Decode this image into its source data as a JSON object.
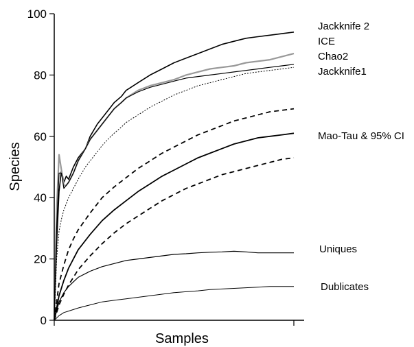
{
  "chart_data": {
    "type": "line",
    "xlabel": "Samples",
    "ylabel": "Species",
    "xlim": [
      0,
      100
    ],
    "ylim": [
      0,
      100
    ],
    "yticks": [
      0,
      20,
      40,
      60,
      80,
      100
    ],
    "grid": false,
    "series": [
      {
        "name": "Jackknife 2",
        "color": "#000000",
        "style": "solid",
        "width": 1.6,
        "x": [
          0,
          1,
          2,
          3,
          4,
          5,
          6,
          8,
          10,
          13,
          15,
          18,
          20,
          23,
          25,
          28,
          30,
          35,
          40,
          45,
          50,
          55,
          60,
          65,
          70,
          75,
          80,
          85,
          90,
          95,
          100
        ],
        "y": [
          0,
          25,
          42,
          49,
          45,
          47,
          46,
          50,
          53,
          56,
          60,
          64,
          66,
          69,
          71,
          73,
          75,
          77.5,
          80,
          82,
          84,
          85.5,
          87,
          88.5,
          90,
          91,
          92,
          92.5,
          93,
          93.5,
          94
        ]
      },
      {
        "name": "ICE",
        "color": "#999999",
        "style": "solid",
        "width": 2.2,
        "x": [
          0,
          1,
          2,
          3,
          4,
          5,
          6,
          8,
          10,
          13,
          15,
          18,
          20,
          23,
          25,
          28,
          30,
          35,
          40,
          45,
          50,
          55,
          60,
          65,
          70,
          75,
          80,
          85,
          90,
          95,
          100
        ],
        "y": [
          0,
          36,
          54,
          49,
          44,
          44,
          45,
          48,
          52,
          56,
          59,
          62,
          64,
          67,
          69,
          71,
          72.5,
          75,
          76.5,
          77.5,
          78.5,
          80,
          81,
          82,
          82.5,
          83,
          84,
          84.5,
          85,
          86,
          87
        ]
      },
      {
        "name": "Chao2",
        "color": "#000000",
        "style": "solid",
        "width": 1.2,
        "x": [
          0,
          1,
          2,
          3,
          4,
          5,
          6,
          8,
          10,
          13,
          15,
          18,
          20,
          23,
          25,
          28,
          30,
          35,
          40,
          45,
          50,
          55,
          60,
          65,
          70,
          75,
          80,
          85,
          90,
          95,
          100
        ],
        "y": [
          0,
          30,
          48,
          48,
          43,
          44,
          45,
          48,
          52,
          56,
          59,
          62,
          64,
          67,
          69,
          71,
          72.5,
          74.5,
          76,
          77,
          78,
          79,
          79.5,
          80,
          80.5,
          81,
          81.5,
          82,
          82.5,
          83,
          83.5
        ]
      },
      {
        "name": "Jackknife1",
        "color": "#000000",
        "style": "dotted",
        "width": 1.0,
        "x": [
          0,
          1,
          2,
          3,
          4,
          5,
          6,
          8,
          10,
          13,
          15,
          18,
          20,
          23,
          25,
          28,
          30,
          35,
          40,
          45,
          50,
          55,
          60,
          65,
          70,
          75,
          80,
          85,
          90,
          95,
          100
        ],
        "y": [
          0,
          20,
          29,
          33,
          36,
          38,
          40,
          43,
          46,
          50,
          52,
          55,
          57,
          59.5,
          61,
          63,
          64.5,
          67,
          69.5,
          71.5,
          73.5,
          75,
          76.5,
          77.5,
          78.5,
          79.5,
          80.5,
          81,
          81.5,
          82,
          82.5
        ]
      },
      {
        "name": "Mao-Tau & 95% CI",
        "color": "#000000",
        "style": "solid",
        "width": 1.8,
        "x": [
          0,
          2,
          4,
          6,
          8,
          10,
          15,
          20,
          25,
          30,
          35,
          40,
          45,
          50,
          55,
          60,
          65,
          70,
          75,
          80,
          85,
          90,
          95,
          100
        ],
        "y": [
          0,
          8,
          13,
          17,
          20,
          23,
          28,
          32.5,
          36,
          39,
          42,
          44.5,
          47,
          49,
          51,
          53,
          54.5,
          56,
          57.5,
          58.5,
          59.5,
          60,
          60.5,
          61
        ]
      },
      {
        "name": "Mao-Tau upper 95% CI",
        "color": "#000000",
        "style": "dashed",
        "width": 1.8,
        "x": [
          0,
          2,
          4,
          6,
          8,
          10,
          15,
          20,
          25,
          30,
          35,
          40,
          45,
          50,
          55,
          60,
          65,
          70,
          75,
          80,
          85,
          90,
          95,
          100
        ],
        "y": [
          0,
          12,
          18,
          23,
          26.5,
          29.5,
          35,
          40,
          43.5,
          46.5,
          49.5,
          52,
          54.5,
          56.5,
          58.5,
          60.5,
          62,
          63.5,
          65,
          66,
          67,
          68,
          68.5,
          69
        ]
      },
      {
        "name": "Mao-Tau lower 95% CI",
        "color": "#000000",
        "style": "dashed",
        "width": 1.8,
        "x": [
          0,
          2,
          4,
          6,
          8,
          10,
          15,
          20,
          25,
          30,
          35,
          40,
          45,
          50,
          55,
          60,
          65,
          70,
          75,
          80,
          85,
          90,
          95,
          100
        ],
        "y": [
          0,
          5,
          8.5,
          11.5,
          14,
          16.5,
          21,
          25,
          28.5,
          31.5,
          34,
          36.5,
          39,
          41,
          43,
          44.5,
          46,
          47.5,
          48.5,
          49.5,
          50.5,
          51.5,
          52.5,
          53
        ]
      },
      {
        "name": "Uniques",
        "color": "#000000",
        "style": "solid",
        "width": 1.2,
        "x": [
          0,
          2,
          4,
          6,
          8,
          10,
          15,
          20,
          25,
          30,
          35,
          40,
          45,
          50,
          55,
          60,
          65,
          70,
          75,
          80,
          85,
          90,
          95,
          100
        ],
        "y": [
          0,
          6,
          9,
          11,
          12.5,
          14,
          16,
          17.5,
          18.5,
          19.5,
          20,
          20.5,
          21,
          21.5,
          21.7,
          22,
          22.2,
          22.3,
          22.5,
          22.3,
          22,
          22,
          22,
          22
        ]
      },
      {
        "name": "Dublicates",
        "color": "#000000",
        "style": "solid",
        "width": 1.0,
        "x": [
          0,
          2,
          4,
          6,
          8,
          10,
          15,
          20,
          25,
          30,
          35,
          40,
          45,
          50,
          55,
          60,
          65,
          70,
          75,
          80,
          85,
          90,
          95,
          100
        ],
        "y": [
          0,
          1.5,
          2.5,
          3,
          3.5,
          4,
          5,
          6,
          6.5,
          7,
          7.5,
          8,
          8.5,
          9,
          9.3,
          9.6,
          10,
          10.2,
          10.4,
          10.6,
          10.8,
          11,
          11,
          11
        ]
      }
    ],
    "labels": [
      "Jackknife 2",
      "ICE",
      "Chao2",
      "Jackknife1",
      "Mao-Tau & 95% CI",
      "Uniques",
      "Dublicates"
    ]
  }
}
